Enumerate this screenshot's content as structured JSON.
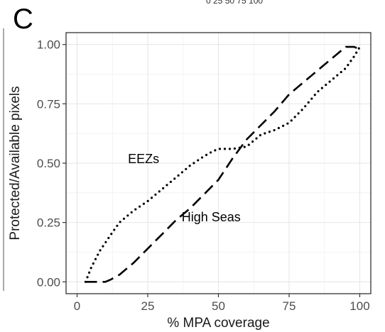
{
  "panel_label": "C",
  "top_fragment": "0  25 50 75 100",
  "chart_data": {
    "type": "line",
    "xlabel": "% MPA coverage",
    "ylabel": "Protected/Available pixels",
    "xlim": [
      0,
      100
    ],
    "ylim": [
      0,
      1
    ],
    "x_ticks": [
      0,
      25,
      50,
      75,
      100
    ],
    "x_tick_labels": [
      "0",
      "25",
      "50",
      "75",
      "100"
    ],
    "y_ticks": [
      0,
      0.25,
      0.5,
      0.75,
      1
    ],
    "y_tick_labels": [
      "0.00",
      "0.25",
      "0.50",
      "0.75",
      "1.00"
    ],
    "grid": true,
    "legend": "none",
    "annotations": [
      {
        "text": "EEZs",
        "x": 18,
        "y": 0.5
      },
      {
        "text": "High Seas",
        "x": 37,
        "y": 0.255
      }
    ],
    "series": [
      {
        "label": "EEZs",
        "style": "dotted",
        "color": "#000000",
        "x": [
          3,
          5,
          8,
          12,
          15,
          20,
          25,
          30,
          35,
          40,
          45,
          48,
          50,
          52,
          55,
          60,
          65,
          70,
          75,
          80,
          85,
          90,
          95,
          98,
          100
        ],
        "y": [
          0.0,
          0.06,
          0.13,
          0.2,
          0.25,
          0.3,
          0.34,
          0.39,
          0.44,
          0.49,
          0.53,
          0.55,
          0.56,
          0.56,
          0.56,
          0.57,
          0.62,
          0.64,
          0.67,
          0.73,
          0.8,
          0.85,
          0.9,
          0.95,
          0.99
        ]
      },
      {
        "label": "High Seas",
        "style": "dashed",
        "color": "#000000",
        "x": [
          3,
          6,
          10,
          12,
          15,
          20,
          25,
          30,
          35,
          40,
          45,
          50,
          55,
          60,
          65,
          70,
          75,
          80,
          85,
          90,
          95,
          97,
          98,
          100
        ],
        "y": [
          0.0,
          0.0,
          0.0,
          0.01,
          0.03,
          0.08,
          0.14,
          0.2,
          0.26,
          0.31,
          0.37,
          0.43,
          0.52,
          0.6,
          0.66,
          0.72,
          0.79,
          0.84,
          0.89,
          0.94,
          0.99,
          0.99,
          0.99,
          0.98
        ]
      }
    ]
  }
}
